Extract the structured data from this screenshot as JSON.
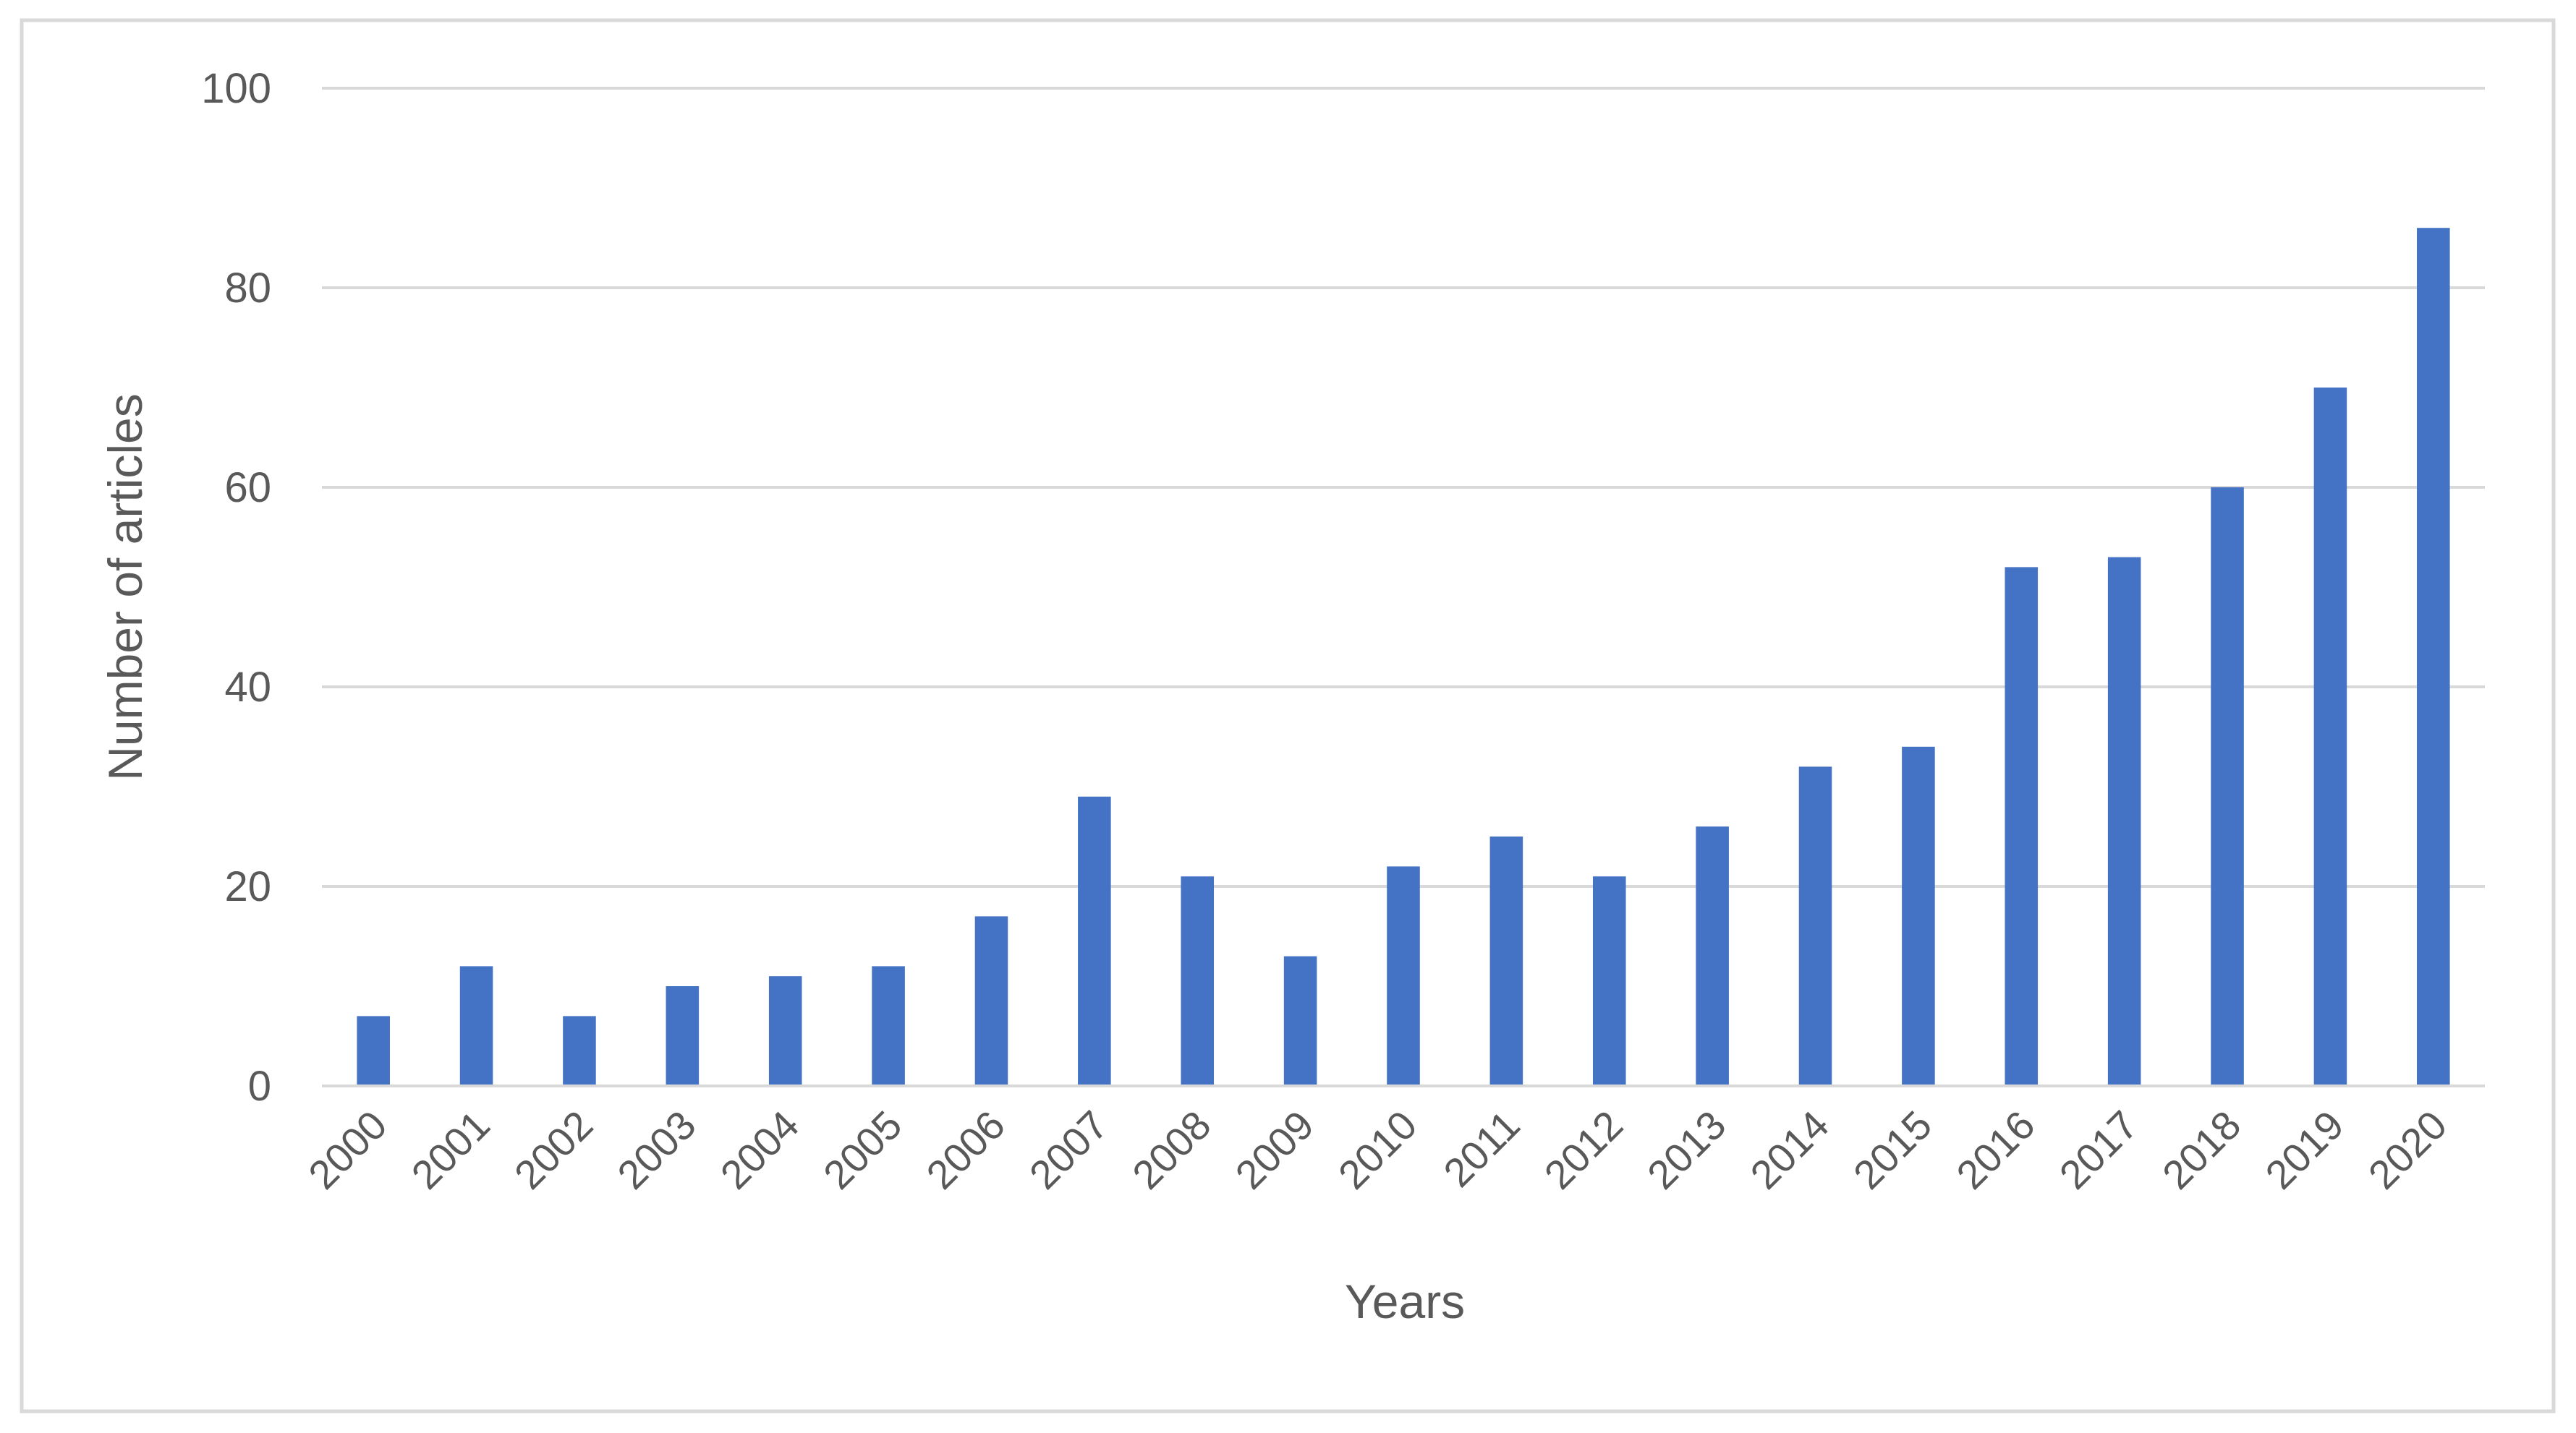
{
  "chart_data": {
    "type": "bar",
    "title": "",
    "xlabel": "Years",
    "ylabel": "Number of articles",
    "categories": [
      "2000",
      "2001",
      "2002",
      "2003",
      "2004",
      "2005",
      "2006",
      "2007",
      "2008",
      "2009",
      "2010",
      "2011",
      "2012",
      "2013",
      "2014",
      "2015",
      "2016",
      "2017",
      "2018",
      "2019",
      "2020"
    ],
    "values": [
      7,
      12,
      7,
      10,
      11,
      12,
      17,
      29,
      21,
      13,
      22,
      25,
      21,
      26,
      32,
      34,
      52,
      53,
      60,
      70,
      86
    ],
    "ylim": [
      0,
      100
    ],
    "yticks": [
      "0",
      "20",
      "40",
      "60",
      "80",
      "100"
    ],
    "grid": true,
    "legend": "none",
    "colors": {
      "bar": "#4472C4",
      "grid": "#D9D9D9",
      "axis": "#D9D9D9",
      "text": "#595959",
      "border": "#D9D9D9"
    }
  }
}
